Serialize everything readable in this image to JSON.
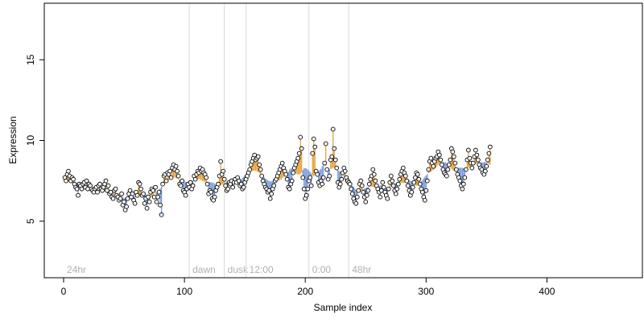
{
  "chart_data": {
    "type": "scatter",
    "title": "",
    "xlabel": "Sample index",
    "ylabel": "Expression",
    "xlim": [
      -16,
      479
    ],
    "ylim": [
      1.5,
      18.5
    ],
    "xticks": [
      0,
      100,
      200,
      300,
      400
    ],
    "yticks": [
      5,
      10,
      15
    ],
    "grid": false,
    "legend": "none",
    "colors": {
      "above_baseline": "#e59a2e",
      "below_baseline": "#6f93d6",
      "region_line": "#d9d9d9",
      "region_label": "#b0b0b0",
      "point_fill": "#ffffff",
      "point_stroke": "#000000"
    },
    "regions": [
      {
        "label": "24hr",
        "x": 0
      },
      {
        "label": "dawn",
        "x": 104
      },
      {
        "label": "dusk",
        "x": 133
      },
      {
        "label": "12:00",
        "x": 151
      },
      {
        "label": "0:00",
        "x": 203
      },
      {
        "label": "48hr",
        "x": 236
      }
    ],
    "series": [
      {
        "x_start": 1,
        "values": [
          7.7,
          7.5,
          7.9,
          8.1,
          7.8,
          7.5,
          7.7,
          7.6,
          7.3,
          7.1,
          7.0,
          6.6,
          7.3,
          7.2,
          7.0,
          7.3,
          7.4,
          7.1,
          7.5,
          7.0,
          7.3,
          7.2,
          7.0,
          6.9,
          6.8,
          7.0,
          7.1,
          6.8,
          7.2,
          7.3,
          7.0,
          6.9,
          7.1,
          7.3,
          7.5,
          6.9,
          7.2,
          6.7,
          6.8,
          6.5,
          6.4,
          6.9,
          7.0,
          6.6,
          6.5,
          6.3,
          6.4,
          6.7,
          6.0,
          6.2,
          5.7,
          5.9,
          6.4,
          6.7,
          6.9,
          6.5,
          6.7,
          6.3,
          6.1,
          6.8,
          6.6,
          7.4,
          7.3,
          7.0,
          6.6,
          6.7,
          6.1,
          6.4,
          5.8,
          6.5,
          6.2,
          6.8,
          7.0,
          6.9,
          6.5,
          7.1,
          6.2,
          6.5,
          6.8,
          6.0,
          5.4,
          7.3,
          7.8,
          7.9,
          7.5,
          8.0,
          7.9,
          8.1,
          7.7,
          8.3,
          8.5,
          8.2,
          8.4,
          8.1,
          7.8,
          7.3,
          7.2,
          7.5,
          6.9,
          6.8,
          6.6,
          7.0,
          7.3,
          7.1,
          7.4,
          7.0,
          7.2,
          7.8,
          7.6,
          7.9,
          8.1,
          8.0,
          8.3,
          8.1,
          8.2,
          8.0,
          7.9,
          7.7,
          7.3,
          6.7,
          6.9,
          6.8,
          6.4,
          6.3,
          6.5,
          6.9,
          7.1,
          7.3,
          7.8,
          8.7,
          7.9,
          8.1,
          7.6,
          7.2,
          6.9,
          7.0,
          7.4,
          7.3,
          7.5,
          7.1,
          7.4,
          7.6,
          7.4,
          7.7,
          7.5,
          7.2,
          7.3,
          7.0,
          7.1,
          7.4,
          7.6,
          7.8,
          8.0,
          8.2,
          8.5,
          8.7,
          8.9,
          9.1,
          8.8,
          8.9,
          9.0,
          8.5,
          8.2,
          7.8,
          7.5,
          7.3,
          7.1,
          7.0,
          6.8,
          6.9,
          6.4,
          6.7,
          7.0,
          7.2,
          7.5,
          7.6,
          7.8,
          8.0,
          8.2,
          8.4,
          8.6,
          8.3,
          8.1,
          7.9,
          7.6,
          7.1,
          7.0,
          7.3,
          7.5,
          8.0,
          8.3,
          8.5,
          8.7,
          8.9,
          9.2,
          10.2,
          9.5,
          7.7,
          7.0,
          6.4,
          6.6,
          7.0,
          7.5,
          7.7,
          7.2,
          9.2,
          10.1,
          9.6,
          8.1,
          7.9,
          7.4,
          7.2,
          7.5,
          7.3,
          7.7,
          8.6,
          9.8,
          8.2,
          7.6,
          7.8,
          8.8,
          9.0,
          10.7,
          9.5,
          8.8,
          8.3,
          7.4,
          7.1,
          7.3,
          7.6,
          8.0,
          8.3,
          8.1,
          7.7,
          7.5,
          7.4,
          7.3,
          7.0,
          6.7,
          6.4,
          6.2,
          6.1,
          6.5,
          6.9,
          7.3,
          7.5,
          7.2,
          6.8,
          6.5,
          6.2,
          6.6,
          6.9,
          7.3,
          7.6,
          7.8,
          8.2,
          7.9,
          7.5,
          7.2,
          7.0,
          6.8,
          6.5,
          6.9,
          7.4,
          7.1,
          6.8,
          6.6,
          6.4,
          7.0,
          7.4,
          7.8,
          7.5,
          7.2,
          6.9,
          6.7,
          7.0,
          7.3,
          7.6,
          7.9,
          8.1,
          8.3,
          8.0,
          7.8,
          7.5,
          7.2,
          6.9,
          6.6,
          6.8,
          7.1,
          7.4,
          7.7,
          8.0,
          7.9,
          7.6,
          7.3,
          7.0,
          6.8,
          6.5,
          6.3,
          6.9,
          7.5,
          8.2,
          8.7,
          8.9,
          8.6,
          8.4,
          8.7,
          8.9,
          9.0,
          9.3,
          9.1,
          8.8,
          8.5,
          8.2,
          8.0,
          7.9,
          7.8,
          8.2,
          8.5,
          8.8,
          9.5,
          9.3,
          9.0,
          8.6,
          8.2,
          7.9,
          7.7,
          7.5,
          7.2,
          7.0,
          7.3,
          7.7,
          8.2,
          8.8,
          9.4,
          8.9,
          8.6,
          8.3,
          8.6,
          9.0,
          9.4,
          9.1,
          8.8,
          8.5,
          8.3,
          8.2,
          8.0,
          7.9,
          8.1,
          8.4,
          8.8,
          9.2,
          9.6
        ]
      }
    ]
  }
}
